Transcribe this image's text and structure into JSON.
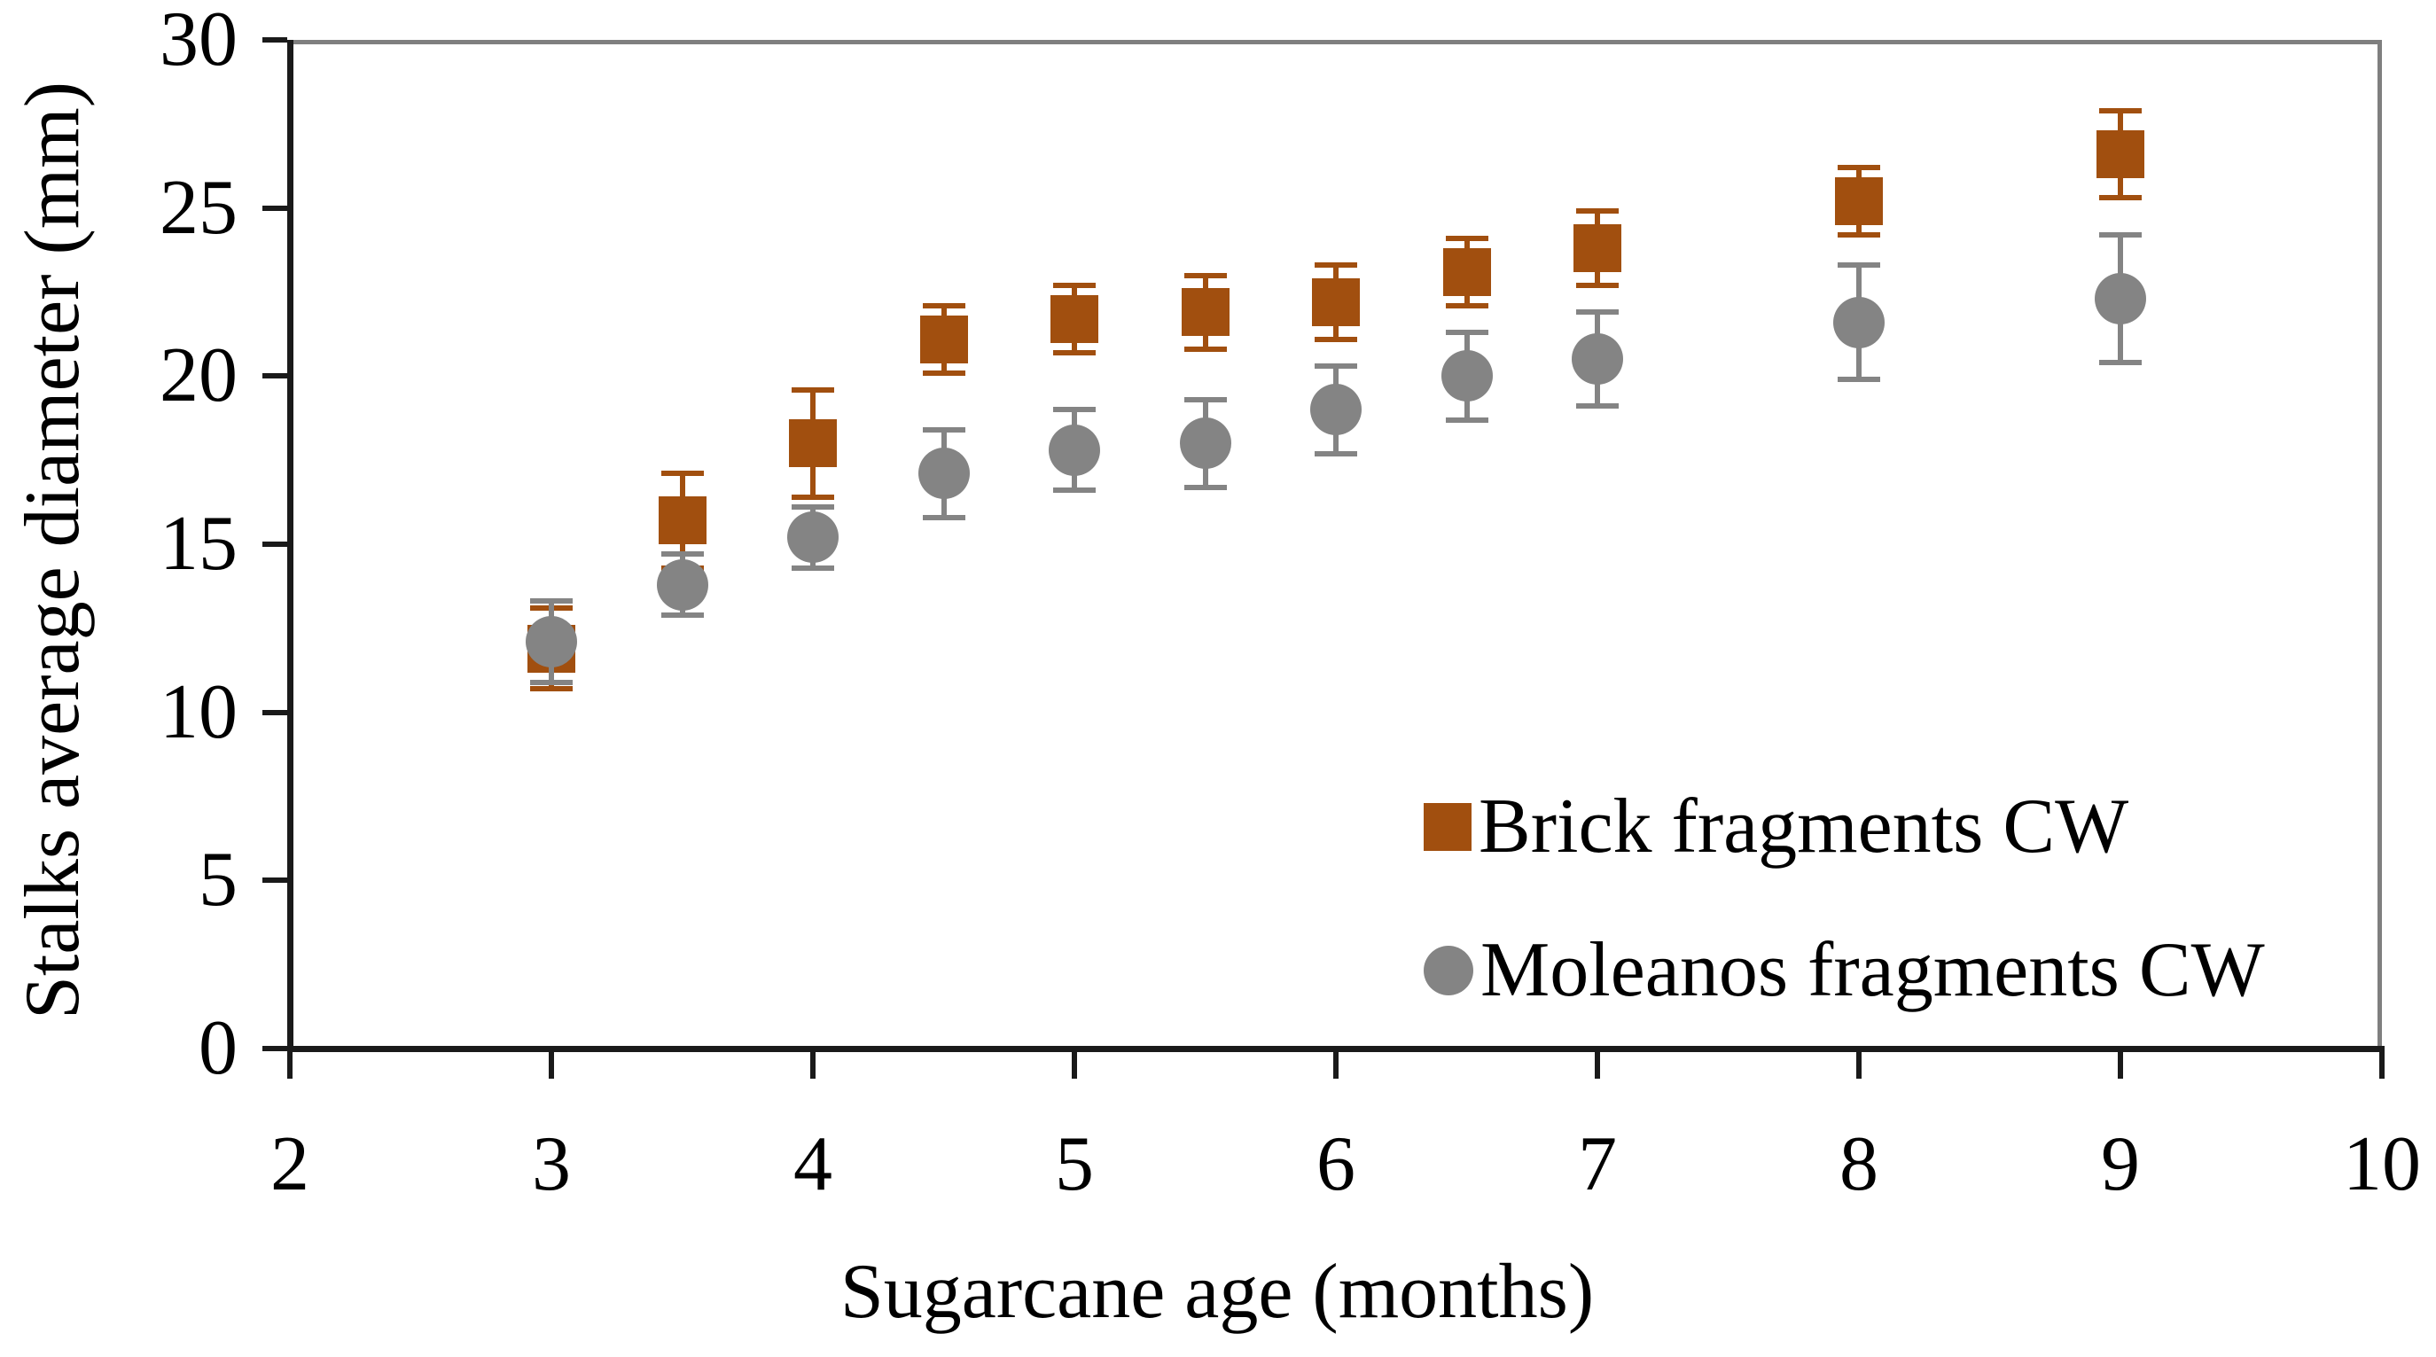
{
  "figure": {
    "background": "#ffffff",
    "text_color": "#000000",
    "axis_color": "#1a1a1a",
    "border_color": "#7f7f7f"
  },
  "chart_data": {
    "type": "scatter",
    "title": "",
    "xlabel": "Sugarcane age (months)",
    "ylabel": "Stalks average diameter (mm)",
    "xlim": [
      2,
      10
    ],
    "ylim": [
      0,
      30
    ],
    "x_tick_labels": [
      "2",
      "3",
      "4",
      "5",
      "6",
      "7",
      "8",
      "9",
      "10"
    ],
    "x_ticks": [
      2,
      3,
      4,
      5,
      6,
      7,
      8,
      9,
      10
    ],
    "y_tick_labels": [
      "0",
      "5",
      "10",
      "15",
      "20",
      "25",
      "30"
    ],
    "y_ticks": [
      0,
      5,
      10,
      15,
      20,
      25,
      30
    ],
    "grid": false,
    "legend_position": "inside-lower-right",
    "x": [
      3,
      3.5,
      4,
      4.5,
      5,
      5.5,
      6,
      6.5,
      7,
      8,
      9
    ],
    "series": [
      {
        "name": "Brick fragments CW",
        "marker": "square",
        "color": "#A14F0F",
        "values": [
          11.9,
          15.7,
          18.0,
          21.1,
          21.7,
          21.9,
          22.2,
          23.1,
          23.8,
          25.2,
          26.6
        ],
        "errors": [
          1.2,
          1.4,
          1.6,
          1.0,
          1.0,
          1.1,
          1.1,
          1.0,
          1.1,
          1.0,
          1.3
        ]
      },
      {
        "name": "Moleanos fragments CW",
        "marker": "circle",
        "color": "#848484",
        "values": [
          12.1,
          13.8,
          15.2,
          17.1,
          17.8,
          18.0,
          19.0,
          20.0,
          20.5,
          21.6,
          22.3
        ],
        "errors": [
          1.2,
          0.9,
          0.9,
          1.3,
          1.2,
          1.3,
          1.3,
          1.3,
          1.4,
          1.7,
          1.9
        ]
      }
    ]
  }
}
